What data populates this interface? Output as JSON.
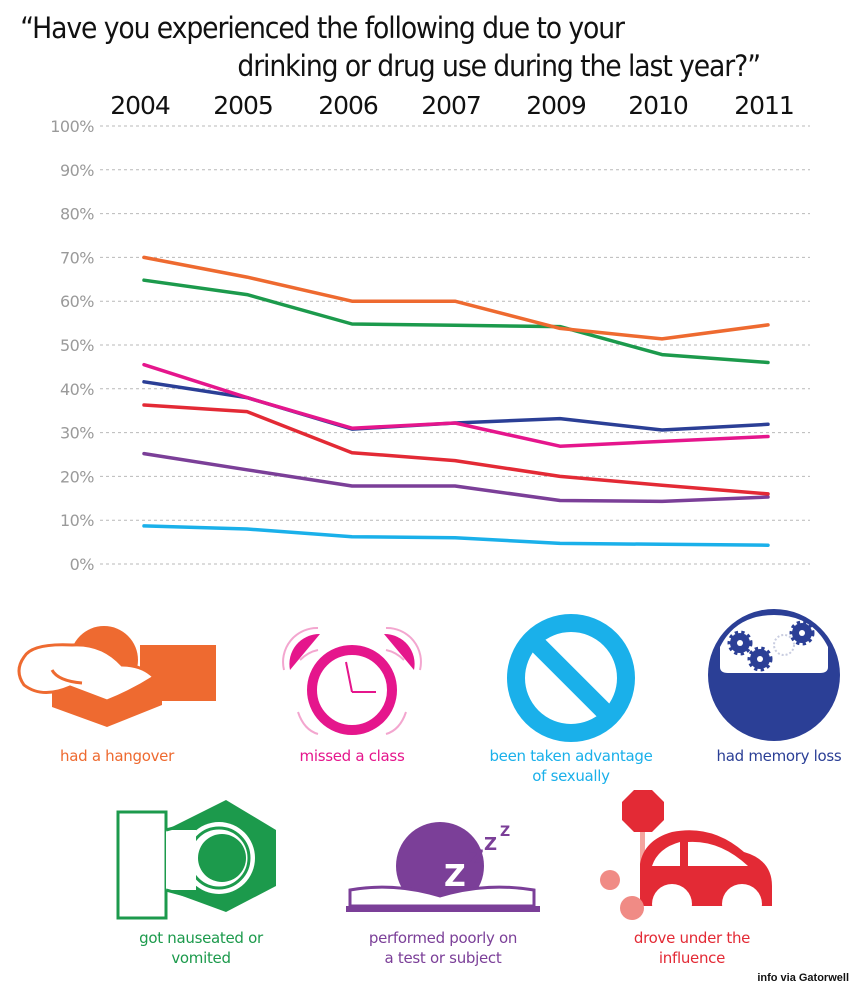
{
  "title": {
    "line1": "“Have you experienced the following due to your",
    "line2": "drinking or drug use during the last year?”"
  },
  "chart_data": {
    "type": "line",
    "title": "“Have you experienced the following due to your drinking or drug use during the last year?”",
    "xlabel": "",
    "ylabel": "",
    "categories": [
      "2004",
      "2005",
      "2006",
      "2007",
      "2009",
      "2010",
      "2011"
    ],
    "y_ticks": [
      "0%",
      "10%",
      "20%",
      "30%",
      "40%",
      "50%",
      "60%",
      "70%",
      "80%",
      "90%",
      "100%"
    ],
    "ylim": [
      0,
      100
    ],
    "grid": true,
    "x_axis_position": "top",
    "series": [
      {
        "name": "had a hangover",
        "color": "#ee6a30",
        "values": [
          70,
          65.5,
          60,
          60,
          53.8,
          51.4,
          54.6
        ]
      },
      {
        "name": "got nauseated or vomited",
        "color": "#1c9a4c",
        "values": [
          64.8,
          61.5,
          54.8,
          54.5,
          54.2,
          47.8,
          46
        ]
      },
      {
        "name": "missed a class",
        "color": "#e5168c",
        "values": [
          45.5,
          38,
          31,
          32.2,
          26.9,
          28,
          29.1
        ]
      },
      {
        "name": "had memory loss",
        "color": "#2b3f96",
        "values": [
          41.6,
          38,
          30.8,
          32.2,
          33.2,
          30.6,
          31.9
        ]
      },
      {
        "name": "drove under the influence",
        "color": "#e32a35",
        "values": [
          36.3,
          34.8,
          25.4,
          23.6,
          20,
          18,
          16
        ]
      },
      {
        "name": "performed poorly on a test or subject",
        "color": "#7b3f98",
        "values": [
          25.2,
          21.5,
          17.8,
          17.8,
          14.5,
          14.3,
          15.3
        ]
      },
      {
        "name": "been taken advantage of sexually",
        "color": "#1ab0ea",
        "values": [
          8.7,
          8,
          6.2,
          6,
          4.7,
          4.5,
          4.3
        ]
      }
    ]
  },
  "legend": {
    "hangover": {
      "line1": "had a hangover",
      "line2": "",
      "color": "#ee6a30",
      "icon": "pillow-head-icon"
    },
    "missed_class": {
      "line1": "missed a class",
      "line2": "",
      "color": "#e5168c",
      "icon": "alarm-clock-icon"
    },
    "sexual": {
      "line1": "been taken advantage",
      "line2": "of sexually",
      "color": "#1ab0ea",
      "icon": "prohibited-icon"
    },
    "memory": {
      "line1": "had memory loss",
      "line2": "",
      "color": "#2b3f96",
      "icon": "brain-gears-icon"
    },
    "nauseated": {
      "line1": "got nauseated or",
      "line2": "vomited",
      "color": "#1c9a4c",
      "icon": "toilet-icon"
    },
    "test": {
      "line1": "performed poorly on",
      "line2": "a test or subject",
      "color": "#7b3f98",
      "icon": "sleeping-on-book-icon"
    },
    "drove": {
      "line1": "drove under the",
      "line2": "influence",
      "color": "#e32a35",
      "icon": "car-crash-icon"
    }
  },
  "credit": "info via Gatorwell"
}
